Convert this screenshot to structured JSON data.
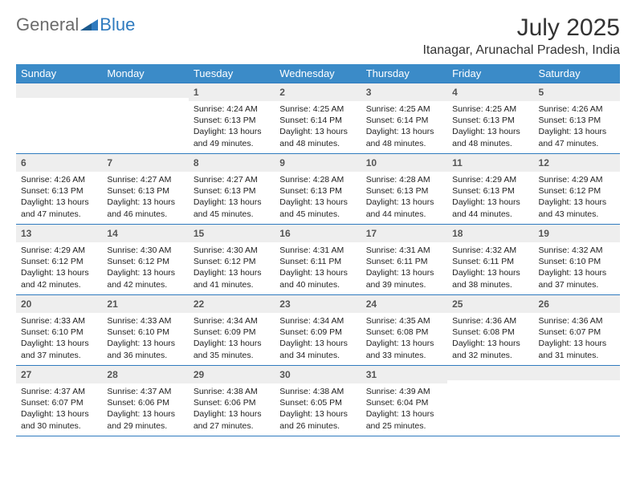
{
  "logo": {
    "general": "General",
    "blue": "Blue"
  },
  "title": {
    "month": "July 2025",
    "location": "Itanagar, Arunachal Pradesh, India"
  },
  "colors": {
    "header_bg": "#3b8bc8",
    "header_text": "#ffffff",
    "border": "#2f7bbf",
    "daynum_bg": "#eeeeee",
    "logo_general": "#6b6b6b",
    "logo_blue": "#2f7bbf",
    "body_text": "#222222",
    "background": "#ffffff"
  },
  "day_headers": [
    "Sunday",
    "Monday",
    "Tuesday",
    "Wednesday",
    "Thursday",
    "Friday",
    "Saturday"
  ],
  "weeks": [
    [
      null,
      null,
      {
        "num": "1",
        "sunrise": "Sunrise: 4:24 AM",
        "sunset": "Sunset: 6:13 PM",
        "daylight": "Daylight: 13 hours and 49 minutes."
      },
      {
        "num": "2",
        "sunrise": "Sunrise: 4:25 AM",
        "sunset": "Sunset: 6:14 PM",
        "daylight": "Daylight: 13 hours and 48 minutes."
      },
      {
        "num": "3",
        "sunrise": "Sunrise: 4:25 AM",
        "sunset": "Sunset: 6:14 PM",
        "daylight": "Daylight: 13 hours and 48 minutes."
      },
      {
        "num": "4",
        "sunrise": "Sunrise: 4:25 AM",
        "sunset": "Sunset: 6:13 PM",
        "daylight": "Daylight: 13 hours and 48 minutes."
      },
      {
        "num": "5",
        "sunrise": "Sunrise: 4:26 AM",
        "sunset": "Sunset: 6:13 PM",
        "daylight": "Daylight: 13 hours and 47 minutes."
      }
    ],
    [
      {
        "num": "6",
        "sunrise": "Sunrise: 4:26 AM",
        "sunset": "Sunset: 6:13 PM",
        "daylight": "Daylight: 13 hours and 47 minutes."
      },
      {
        "num": "7",
        "sunrise": "Sunrise: 4:27 AM",
        "sunset": "Sunset: 6:13 PM",
        "daylight": "Daylight: 13 hours and 46 minutes."
      },
      {
        "num": "8",
        "sunrise": "Sunrise: 4:27 AM",
        "sunset": "Sunset: 6:13 PM",
        "daylight": "Daylight: 13 hours and 45 minutes."
      },
      {
        "num": "9",
        "sunrise": "Sunrise: 4:28 AM",
        "sunset": "Sunset: 6:13 PM",
        "daylight": "Daylight: 13 hours and 45 minutes."
      },
      {
        "num": "10",
        "sunrise": "Sunrise: 4:28 AM",
        "sunset": "Sunset: 6:13 PM",
        "daylight": "Daylight: 13 hours and 44 minutes."
      },
      {
        "num": "11",
        "sunrise": "Sunrise: 4:29 AM",
        "sunset": "Sunset: 6:13 PM",
        "daylight": "Daylight: 13 hours and 44 minutes."
      },
      {
        "num": "12",
        "sunrise": "Sunrise: 4:29 AM",
        "sunset": "Sunset: 6:12 PM",
        "daylight": "Daylight: 13 hours and 43 minutes."
      }
    ],
    [
      {
        "num": "13",
        "sunrise": "Sunrise: 4:29 AM",
        "sunset": "Sunset: 6:12 PM",
        "daylight": "Daylight: 13 hours and 42 minutes."
      },
      {
        "num": "14",
        "sunrise": "Sunrise: 4:30 AM",
        "sunset": "Sunset: 6:12 PM",
        "daylight": "Daylight: 13 hours and 42 minutes."
      },
      {
        "num": "15",
        "sunrise": "Sunrise: 4:30 AM",
        "sunset": "Sunset: 6:12 PM",
        "daylight": "Daylight: 13 hours and 41 minutes."
      },
      {
        "num": "16",
        "sunrise": "Sunrise: 4:31 AM",
        "sunset": "Sunset: 6:11 PM",
        "daylight": "Daylight: 13 hours and 40 minutes."
      },
      {
        "num": "17",
        "sunrise": "Sunrise: 4:31 AM",
        "sunset": "Sunset: 6:11 PM",
        "daylight": "Daylight: 13 hours and 39 minutes."
      },
      {
        "num": "18",
        "sunrise": "Sunrise: 4:32 AM",
        "sunset": "Sunset: 6:11 PM",
        "daylight": "Daylight: 13 hours and 38 minutes."
      },
      {
        "num": "19",
        "sunrise": "Sunrise: 4:32 AM",
        "sunset": "Sunset: 6:10 PM",
        "daylight": "Daylight: 13 hours and 37 minutes."
      }
    ],
    [
      {
        "num": "20",
        "sunrise": "Sunrise: 4:33 AM",
        "sunset": "Sunset: 6:10 PM",
        "daylight": "Daylight: 13 hours and 37 minutes."
      },
      {
        "num": "21",
        "sunrise": "Sunrise: 4:33 AM",
        "sunset": "Sunset: 6:10 PM",
        "daylight": "Daylight: 13 hours and 36 minutes."
      },
      {
        "num": "22",
        "sunrise": "Sunrise: 4:34 AM",
        "sunset": "Sunset: 6:09 PM",
        "daylight": "Daylight: 13 hours and 35 minutes."
      },
      {
        "num": "23",
        "sunrise": "Sunrise: 4:34 AM",
        "sunset": "Sunset: 6:09 PM",
        "daylight": "Daylight: 13 hours and 34 minutes."
      },
      {
        "num": "24",
        "sunrise": "Sunrise: 4:35 AM",
        "sunset": "Sunset: 6:08 PM",
        "daylight": "Daylight: 13 hours and 33 minutes."
      },
      {
        "num": "25",
        "sunrise": "Sunrise: 4:36 AM",
        "sunset": "Sunset: 6:08 PM",
        "daylight": "Daylight: 13 hours and 32 minutes."
      },
      {
        "num": "26",
        "sunrise": "Sunrise: 4:36 AM",
        "sunset": "Sunset: 6:07 PM",
        "daylight": "Daylight: 13 hours and 31 minutes."
      }
    ],
    [
      {
        "num": "27",
        "sunrise": "Sunrise: 4:37 AM",
        "sunset": "Sunset: 6:07 PM",
        "daylight": "Daylight: 13 hours and 30 minutes."
      },
      {
        "num": "28",
        "sunrise": "Sunrise: 4:37 AM",
        "sunset": "Sunset: 6:06 PM",
        "daylight": "Daylight: 13 hours and 29 minutes."
      },
      {
        "num": "29",
        "sunrise": "Sunrise: 4:38 AM",
        "sunset": "Sunset: 6:06 PM",
        "daylight": "Daylight: 13 hours and 27 minutes."
      },
      {
        "num": "30",
        "sunrise": "Sunrise: 4:38 AM",
        "sunset": "Sunset: 6:05 PM",
        "daylight": "Daylight: 13 hours and 26 minutes."
      },
      {
        "num": "31",
        "sunrise": "Sunrise: 4:39 AM",
        "sunset": "Sunset: 6:04 PM",
        "daylight": "Daylight: 13 hours and 25 minutes."
      },
      null,
      null
    ]
  ]
}
